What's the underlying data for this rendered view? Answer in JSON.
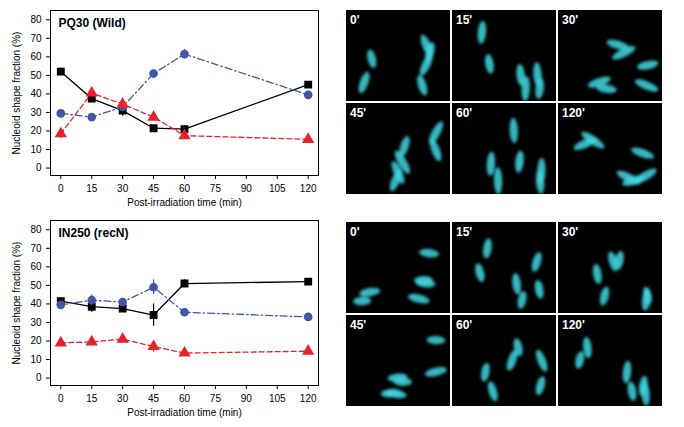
{
  "chart_data": [
    {
      "type": "line",
      "title": "PQ30 (Wild)",
      "x_label": "Post-irradiation time (min)",
      "y_label": "Nucleoid shape fraction (%)",
      "x": [
        0,
        15,
        30,
        45,
        60,
        120
      ],
      "xlim": [
        -5,
        125
      ],
      "xticks": [
        0,
        15,
        30,
        45,
        60,
        75,
        90,
        105,
        120
      ],
      "ylim": [
        -4,
        85
      ],
      "yticks": [
        0,
        10,
        20,
        30,
        40,
        50,
        60,
        70,
        80
      ],
      "series": [
        {
          "color": "#000000",
          "marker": "square",
          "line_style": "solid",
          "values": [
            52,
            37.5,
            31,
            21.5,
            21,
            45
          ],
          "errors": [
            2,
            2,
            3,
            1.5,
            2,
            1.5
          ]
        },
        {
          "color": "#4255a8",
          "marker": "circle",
          "line_style": "dashdot",
          "values": [
            29.5,
            27.5,
            33,
            51,
            61.5,
            39.5
          ],
          "errors": [
            0.5,
            1,
            1,
            1,
            2.5,
            1
          ]
        },
        {
          "color": "#e8222a",
          "marker": "triangle",
          "line_style": "dashed",
          "values": [
            18.5,
            40.5,
            34.5,
            27.5,
            17.5,
            15.5
          ],
          "errors": [
            2.5,
            1.5,
            2,
            2,
            0.5,
            0.5
          ]
        }
      ]
    },
    {
      "type": "line",
      "title": "IN250 (recN)",
      "x_label": "Post-irradiation time (min)",
      "y_label": "Nucleoid shape fraction (%)",
      "x": [
        0,
        15,
        30,
        45,
        60,
        120
      ],
      "xlim": [
        -5,
        125
      ],
      "xticks": [
        0,
        15,
        30,
        45,
        60,
        75,
        90,
        105,
        120
      ],
      "ylim": [
        -4,
        85
      ],
      "yticks": [
        0,
        10,
        20,
        30,
        40,
        50,
        60,
        70,
        80
      ],
      "series": [
        {
          "color": "#000000",
          "marker": "square",
          "line_style": "solid",
          "values": [
            41.5,
            38.5,
            37.5,
            34,
            51,
            52
          ],
          "errors": [
            2,
            3,
            1,
            6,
            2,
            0.5
          ]
        },
        {
          "color": "#4255a8",
          "marker": "circle",
          "line_style": "dashdot",
          "values": [
            39.5,
            42,
            41,
            49,
            35.5,
            33
          ],
          "errors": [
            2,
            3,
            1,
            4,
            2,
            0.5
          ]
        },
        {
          "color": "#e8222a",
          "marker": "triangle",
          "line_style": "dashed",
          "values": [
            19,
            19.5,
            21,
            17,
            13.5,
            14.5
          ],
          "errors": [
            2,
            2,
            1.5,
            3,
            1,
            0.5
          ]
        }
      ]
    }
  ],
  "micrographs": [
    {
      "labels": [
        "0'",
        "15'",
        "30'",
        "45'",
        "60'",
        "120'"
      ]
    },
    {
      "labels": [
        "0'",
        "15'",
        "30'",
        "45'",
        "60'",
        "120'"
      ]
    }
  ]
}
